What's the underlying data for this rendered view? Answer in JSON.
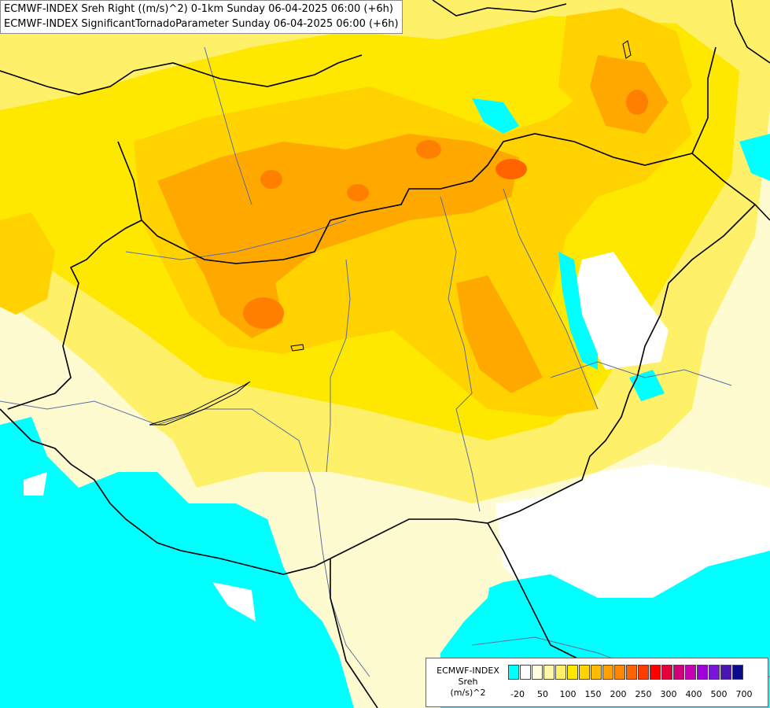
{
  "titles": {
    "line1": "ECMWF-INDEX Sreh Right ((m/s)^2) 0-1km Sunday 06-04-2025 06:00 (+6h)",
    "line2": "ECMWF-INDEX SignificantTornadoParameter Sunday 06-04-2025 06:00 (+6h)"
  },
  "legend": {
    "source": "ECMWF-INDEX",
    "variable": "Sreh",
    "unit": "(m/s)^2",
    "colors": [
      "#00ffff",
      "#ffffff",
      "#fffde0",
      "#fff7a8",
      "#fff06a",
      "#ffe800",
      "#ffd200",
      "#ffbb00",
      "#ffa000",
      "#ff8600",
      "#ff6400",
      "#ff3c00",
      "#ff0000",
      "#e6003c",
      "#d2007a",
      "#c800b4",
      "#a000dc",
      "#7814dc",
      "#4b14b4",
      "#0a0a8c"
    ],
    "ticks": [
      "-20",
      "50",
      "100",
      "150",
      "200",
      "250",
      "300",
      "400",
      "500",
      "700"
    ]
  },
  "fields": {
    "cyan": "#00ffff",
    "white": "#ffffff",
    "lightyellow": "#fffbd0",
    "yellow": "#ffee00",
    "gold": "#ffd200",
    "orange": "#ffa800",
    "darkorange": "#ff8000",
    "border": "#000000",
    "river": "#5a6ea0"
  }
}
